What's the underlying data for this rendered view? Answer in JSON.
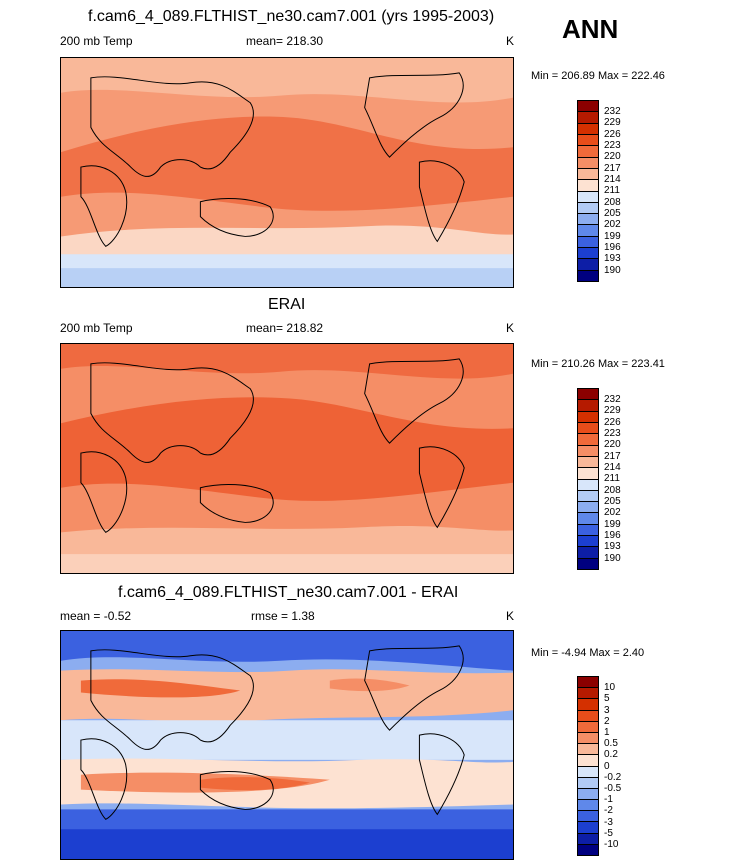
{
  "season": "ANN",
  "panels": [
    {
      "title": "f.cam6_4_089.FLTHIST_ne30.cam7.001 (yrs 1995-2003)",
      "left_label": "200 mb Temp",
      "center_label": "mean= 218.30",
      "units": "K",
      "minmax": "Min = 206.89 Max = 222.46",
      "colorbar_labels": [
        "232",
        "229",
        "226",
        "223",
        "220",
        "217",
        "214",
        "211",
        "208",
        "205",
        "202",
        "199",
        "196",
        "193",
        "190"
      ]
    },
    {
      "title": "ERAI",
      "left_label": "200 mb Temp",
      "center_label": "mean= 218.82",
      "units": "K",
      "minmax": "Min = 210.26 Max = 223.41",
      "colorbar_labels": [
        "232",
        "229",
        "226",
        "223",
        "220",
        "217",
        "214",
        "211",
        "208",
        "205",
        "202",
        "199",
        "196",
        "193",
        "190"
      ]
    },
    {
      "title": "f.cam6_4_089.FLTHIST_ne30.cam7.001 - ERAI",
      "left_label": "mean =  -0.52",
      "center_label": "rmse =   1.38",
      "units": "K",
      "minmax": "Min =  -4.94 Max =   2.40",
      "colorbar_labels": [
        "10",
        "5",
        "3",
        "2",
        "1",
        "0.5",
        "0.2",
        "0",
        "-0.2",
        "-0.5",
        "-1",
        "-2",
        "-3",
        "-5",
        "-10"
      ]
    }
  ],
  "colorbar_colors": [
    "#8b0000",
    "#b51a00",
    "#d43000",
    "#e84d1a",
    "#f06a3a",
    "#f58e66",
    "#f9b899",
    "#fde2d2",
    "#d8e6fa",
    "#b2cbf5",
    "#8cadf0",
    "#5f88ea",
    "#3b61e0",
    "#1c3fd0",
    "#0d1ea6",
    "#000080"
  ]
}
